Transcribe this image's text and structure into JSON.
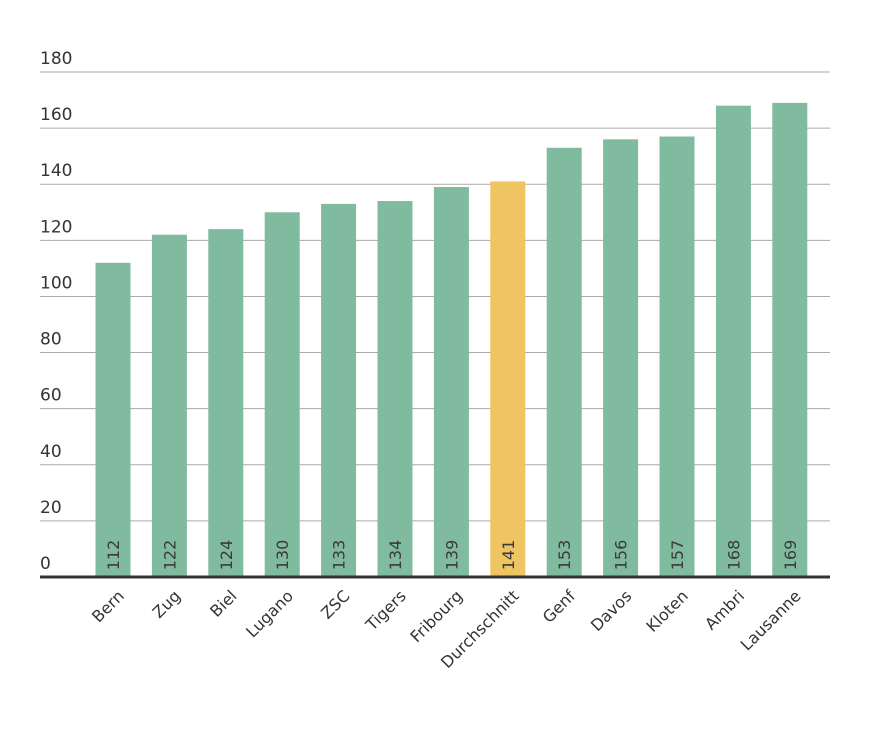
{
  "chart_data": {
    "type": "bar",
    "categories": [
      "Bern",
      "Zug",
      "Biel",
      "Lugano",
      "ZSC",
      "Tigers",
      "Fribourg",
      "Durchschnitt",
      "Genf",
      "Davos",
      "Kloten",
      "Ambri",
      "Lausanne"
    ],
    "values": [
      112,
      122,
      124,
      130,
      133,
      134,
      139,
      141,
      153,
      156,
      157,
      168,
      169
    ],
    "colors": [
      "#80ba9f",
      "#80ba9f",
      "#80ba9f",
      "#80ba9f",
      "#80ba9f",
      "#80ba9f",
      "#80ba9f",
      "#efc463",
      "#80ba9f",
      "#80ba9f",
      "#80ba9f",
      "#80ba9f",
      "#80ba9f"
    ],
    "ylim": [
      0,
      180
    ],
    "yticks": [
      0,
      20,
      40,
      60,
      80,
      100,
      120,
      140,
      160,
      180
    ],
    "grid": true
  }
}
